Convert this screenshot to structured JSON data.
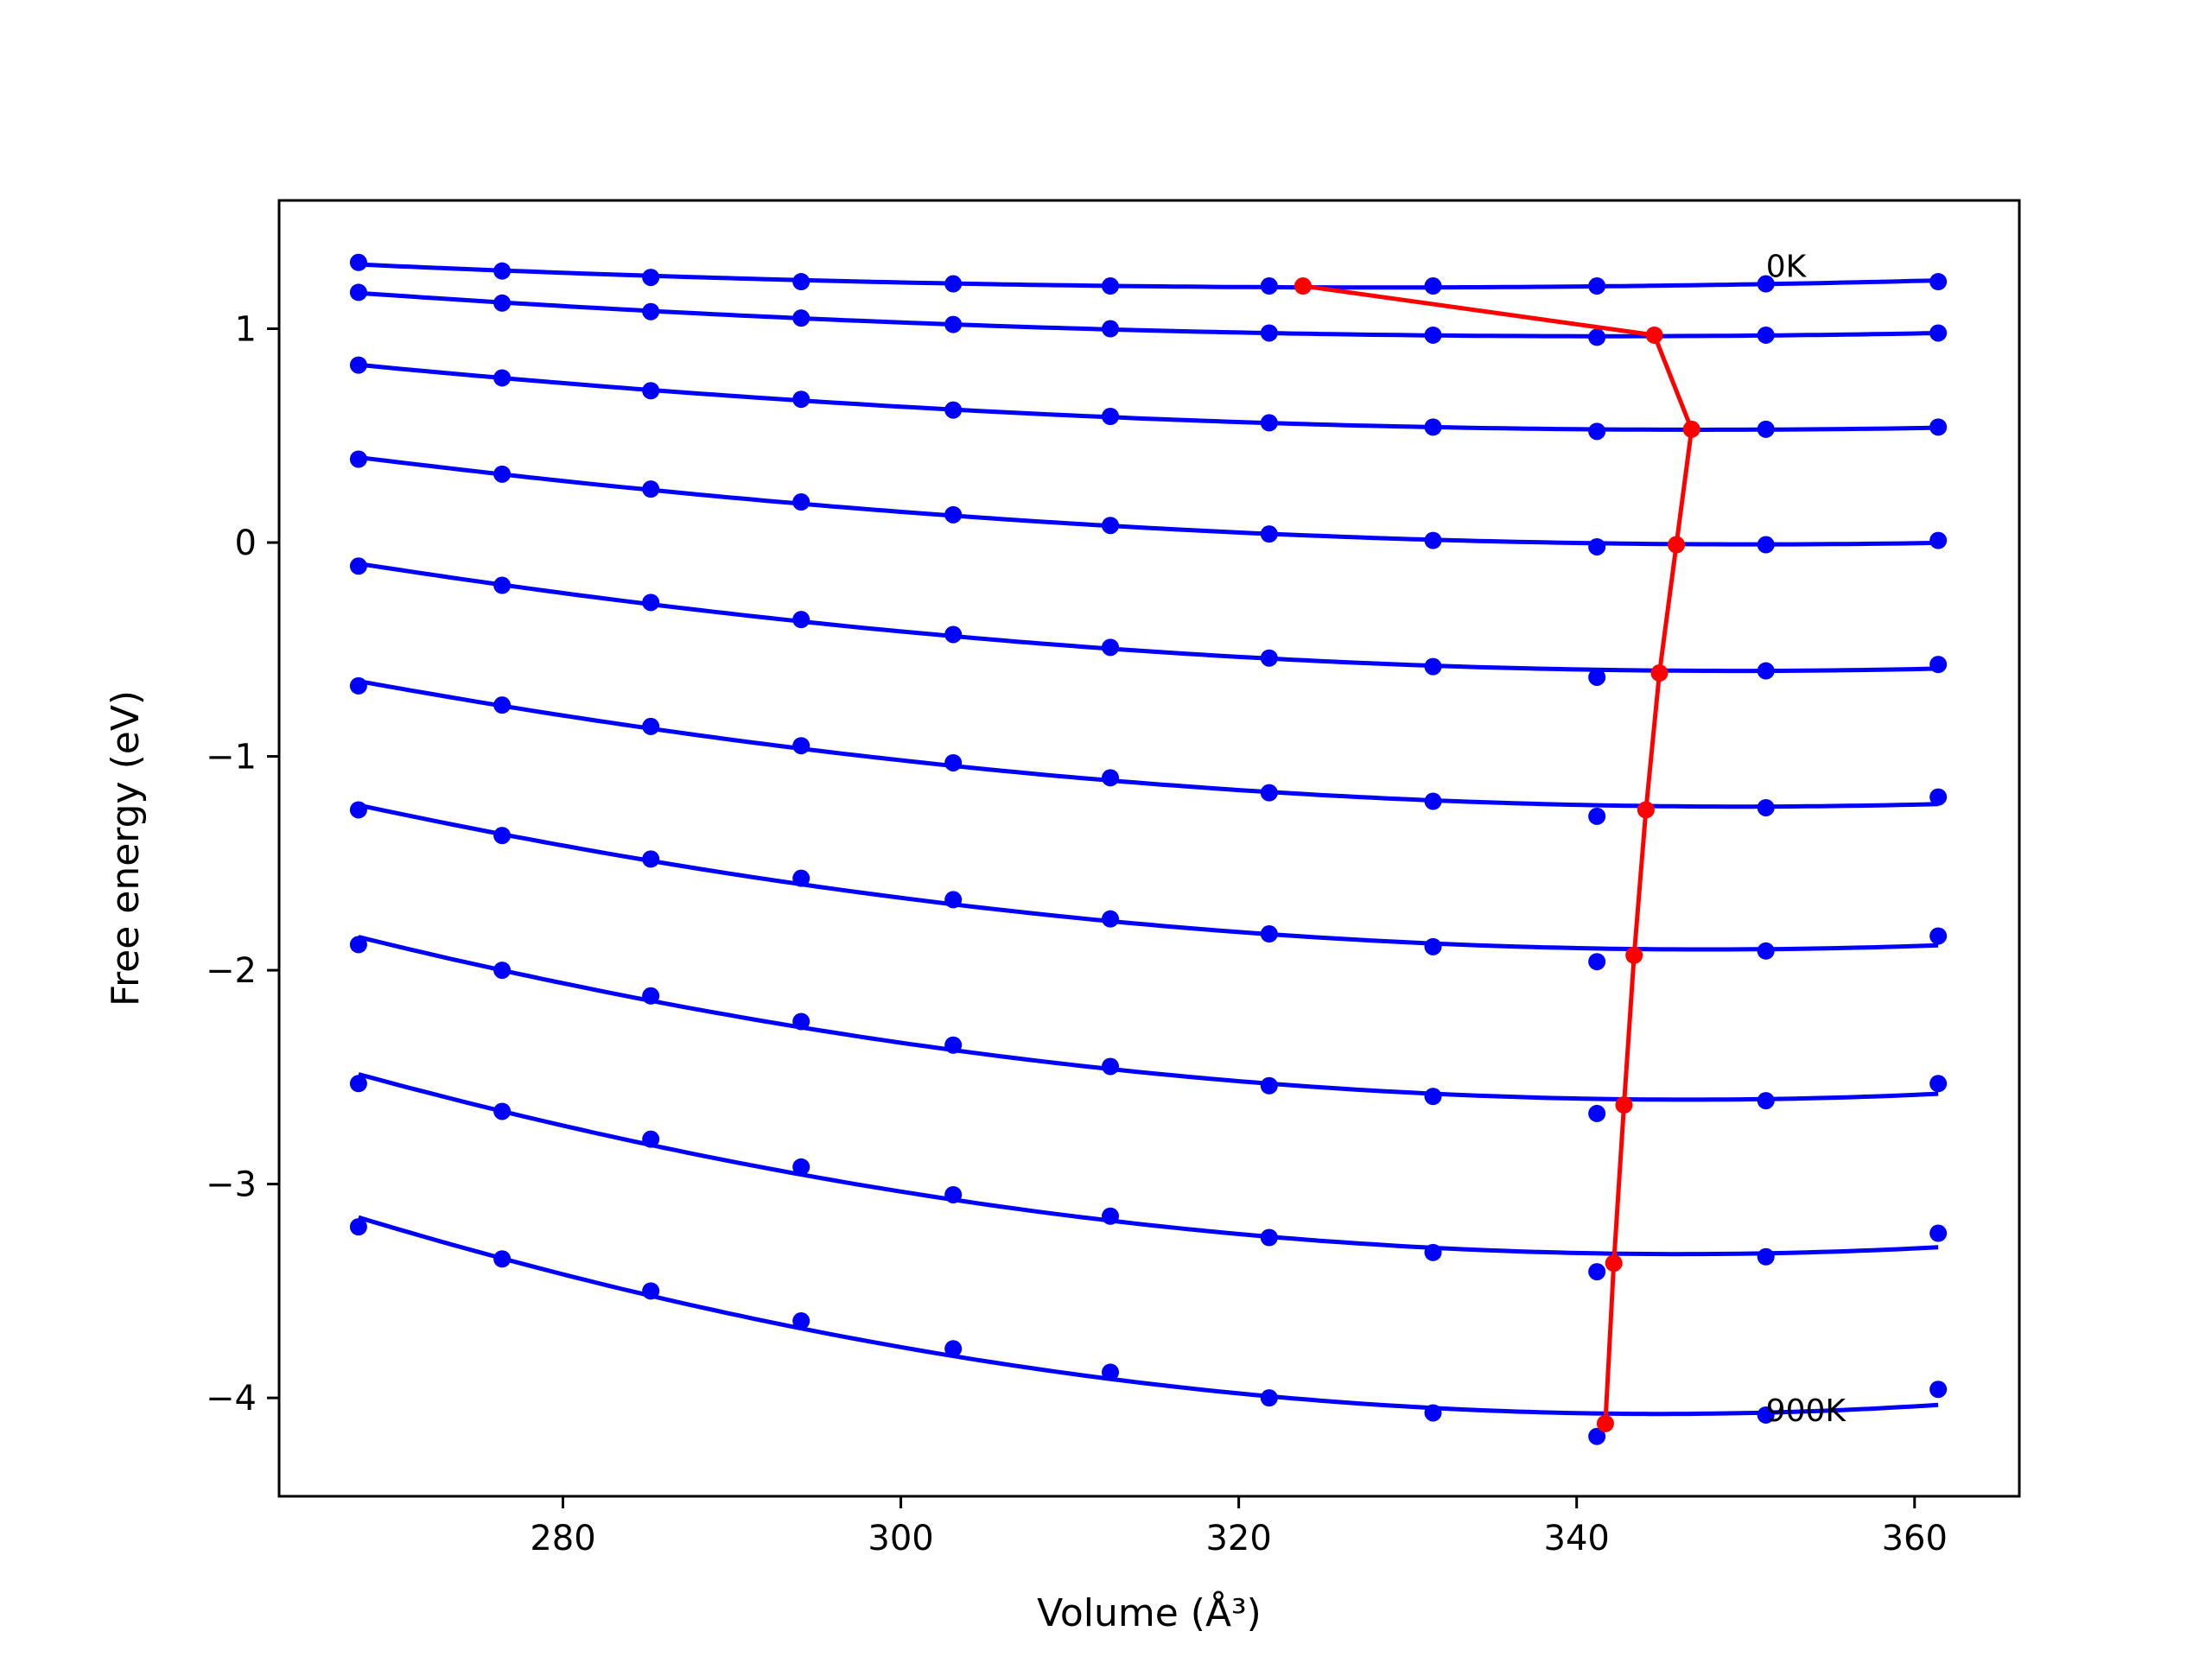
{
  "chart_data": {
    "type": "line",
    "title": "",
    "xlabel": "Volume (Å³)",
    "ylabel": "Free energy (eV)",
    "xlim": [
      263.2,
      366.2
    ],
    "ylim": [
      -4.46,
      1.6
    ],
    "xticks": [
      280,
      300,
      320,
      340,
      360
    ],
    "yticks": [
      1,
      0,
      -1,
      -2,
      -3,
      -4
    ],
    "grid": false,
    "legend": "none",
    "series_color": "#0000ff",
    "equilibrium_color": "#ff0000",
    "x": [
      267.9,
      276.4,
      285.2,
      294.1,
      303.1,
      312.4,
      321.8,
      331.5,
      341.2,
      351.2,
      361.4
    ],
    "series": [
      {
        "values": [
          1.31,
          1.27,
          1.24,
          1.22,
          1.21,
          1.2,
          1.2,
          1.2,
          1.2,
          1.21,
          1.22
        ]
      },
      {
        "values": [
          1.17,
          1.12,
          1.08,
          1.05,
          1.02,
          1.0,
          0.98,
          0.97,
          0.96,
          0.97,
          0.98
        ]
      },
      {
        "values": [
          0.83,
          0.77,
          0.71,
          0.67,
          0.62,
          0.59,
          0.56,
          0.54,
          0.52,
          0.53,
          0.54
        ]
      },
      {
        "values": [
          0.39,
          0.32,
          0.25,
          0.19,
          0.13,
          0.08,
          0.04,
          0.01,
          -0.02,
          -0.01,
          0.01
        ]
      },
      {
        "values": [
          -0.11,
          -0.2,
          -0.28,
          -0.36,
          -0.43,
          -0.49,
          -0.54,
          -0.58,
          -0.63,
          -0.6,
          -0.57
        ]
      },
      {
        "values": [
          -0.67,
          -0.76,
          -0.86,
          -0.95,
          -1.03,
          -1.1,
          -1.17,
          -1.21,
          -1.28,
          -1.24,
          -1.19
        ]
      },
      {
        "values": [
          -1.25,
          -1.37,
          -1.48,
          -1.57,
          -1.67,
          -1.76,
          -1.83,
          -1.89,
          -1.96,
          -1.91,
          -1.84
        ]
      },
      {
        "values": [
          -1.88,
          -2.0,
          -2.12,
          -2.24,
          -2.35,
          -2.45,
          -2.54,
          -2.59,
          -2.67,
          -2.61,
          -2.53
        ]
      },
      {
        "values": [
          -2.53,
          -2.66,
          -2.79,
          -2.92,
          -3.05,
          -3.15,
          -3.25,
          -3.32,
          -3.41,
          -3.34,
          -3.23
        ]
      },
      {
        "values": [
          -3.2,
          -3.35,
          -3.5,
          -3.64,
          -3.77,
          -3.88,
          -4.0,
          -4.07,
          -4.18,
          -4.08,
          -3.96
        ]
      }
    ],
    "equilibrium": {
      "x": [
        323.8,
        344.6,
        346.8,
        345.9,
        344.9,
        344.1,
        343.4,
        342.8,
        342.2,
        341.7
      ],
      "y": [
        1.2,
        0.97,
        0.53,
        -0.01,
        -0.61,
        -1.25,
        -1.93,
        -2.63,
        -3.37,
        -4.12
      ]
    },
    "annotations": [
      {
        "text": "0K",
        "x": 351.2,
        "y": 1.29
      },
      {
        "text": "900K",
        "x": 351.2,
        "y": -4.06
      }
    ]
  }
}
